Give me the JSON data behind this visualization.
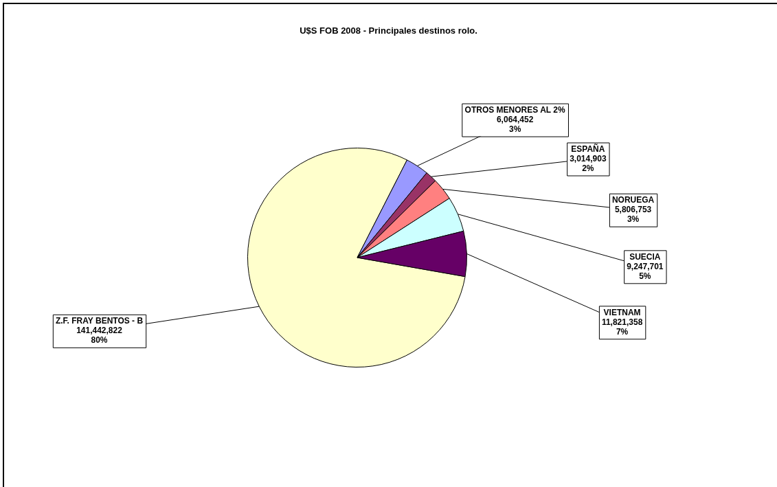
{
  "chart_data": {
    "type": "pie",
    "title": "U$S FOB 2008 - Principales destinos rolo.",
    "categories": [
      "Z.F. FRAY BENTOS - B",
      "OTROS MENORES AL 2%",
      "ESPAÑA",
      "NORUEGA",
      "SUECIA",
      "VIETNAM"
    ],
    "values": [
      141442822,
      6064452,
      3014903,
      5806753,
      9247701,
      11821358
    ],
    "colors": [
      "#ffffcc",
      "#9999ff",
      "#993366",
      "#ff8080",
      "#ccffff",
      "#660066"
    ],
    "value_labels": [
      "141,442,822\n80%",
      "6,064,452\n3%",
      "3,014,903\n2%",
      "5,806,753\n3%",
      "9,247,701\n5%",
      "11,821,358\n7%"
    ]
  }
}
